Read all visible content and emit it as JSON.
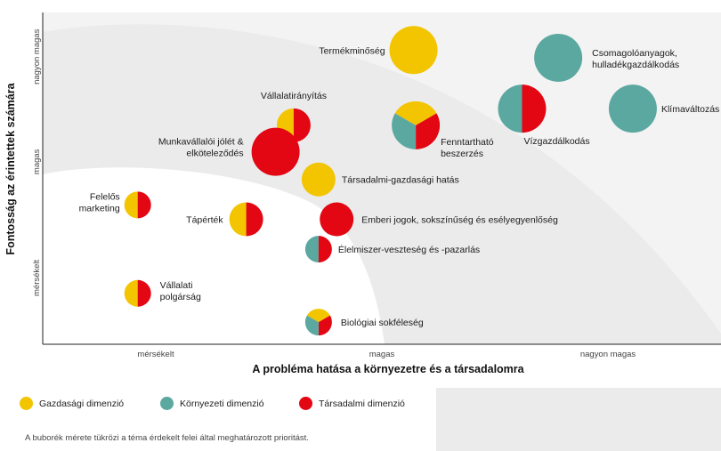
{
  "colors": {
    "economic": "#F2C500",
    "environmental": "#5BA8A0",
    "social": "#E30613",
    "zone_light": "#EBEBEB",
    "zone_white": "#FFFFFF",
    "background": "#F3F3F3"
  },
  "chart_data": {
    "type": "bubble",
    "title": "",
    "xlabel": "A probléma hatása a környezetre és a társadalomra",
    "ylabel": "Fontosság az érintettek számára",
    "x_ticks": [
      "mérsékelt",
      "magas",
      "nagyon magas"
    ],
    "y_ticks": [
      "mérsékelt",
      "magas",
      "nagyon magas"
    ],
    "xlim": [
      0,
      3
    ],
    "ylim": [
      0,
      3
    ],
    "grid": false,
    "legend_placement": "bottom",
    "series": [
      {
        "name": "Gazdasági dimenzió",
        "color_key": "economic"
      },
      {
        "name": "Környezeti dimenzió",
        "color_key": "environmental"
      },
      {
        "name": "Társadalmi dimenzió",
        "color_key": "social"
      }
    ],
    "points": [
      {
        "label": "Termékminőség",
        "x": 1.64,
        "y": 2.66,
        "size": 3,
        "dims": [
          "economic"
        ]
      },
      {
        "label": "Csomagolóanyagok, hulladékgazdálkodás",
        "x": 2.28,
        "y": 2.59,
        "size": 3,
        "dims": [
          "environmental"
        ]
      },
      {
        "label": "Vállalatirányítás",
        "x": 1.11,
        "y": 1.98,
        "size": 2,
        "dims": [
          "economic",
          "social"
        ]
      },
      {
        "label": "Munkavállalói jólét & elköteleződés",
        "x": 1.03,
        "y": 1.74,
        "size": 3,
        "dims": [
          "social"
        ]
      },
      {
        "label": "Fenntartható beszerzés",
        "x": 1.65,
        "y": 1.98,
        "size": 3,
        "dims": [
          "economic",
          "social",
          "environmental"
        ]
      },
      {
        "label": "Vízgazdálkodás",
        "x": 2.12,
        "y": 2.13,
        "size": 3,
        "dims": [
          "environmental",
          "social"
        ]
      },
      {
        "label": "Klímaváltozás",
        "x": 2.61,
        "y": 2.13,
        "size": 3,
        "dims": [
          "environmental"
        ]
      },
      {
        "label": "Társadalmi-gazdasági hatás",
        "x": 1.22,
        "y": 1.49,
        "size": 2,
        "dims": [
          "economic"
        ]
      },
      {
        "label": "Felelős marketing",
        "x": 0.42,
        "y": 1.26,
        "size": 1,
        "dims": [
          "economic",
          "social"
        ]
      },
      {
        "label": "Tápérték",
        "x": 0.9,
        "y": 1.13,
        "size": 2,
        "dims": [
          "economic",
          "social"
        ]
      },
      {
        "label": "Emberi jogok, sokszínűség és esélyegyenlőség",
        "x": 1.3,
        "y": 1.13,
        "size": 2,
        "dims": [
          "social"
        ]
      },
      {
        "label": "Élelmiszer-veszteség és -pazarlás",
        "x": 1.22,
        "y": 0.86,
        "size": 1,
        "dims": [
          "environmental",
          "social"
        ]
      },
      {
        "label": "Vállalati polgárság",
        "x": 0.42,
        "y": 0.46,
        "size": 1,
        "dims": [
          "economic",
          "social"
        ]
      },
      {
        "label": "Biológiai sokféleség",
        "x": 1.22,
        "y": 0.2,
        "size": 1,
        "dims": [
          "economic",
          "social",
          "environmental"
        ]
      }
    ]
  },
  "legend": {
    "items": [
      {
        "label": "Gazdasági dimenzió",
        "color_key": "economic"
      },
      {
        "label": "Környezeti dimenzió",
        "color_key": "environmental"
      },
      {
        "label": "Társadalmi dimenzió",
        "color_key": "social"
      }
    ],
    "note": "A buborék mérete tükrözi a téma érdekelt felei által meghatározott prioritást."
  }
}
